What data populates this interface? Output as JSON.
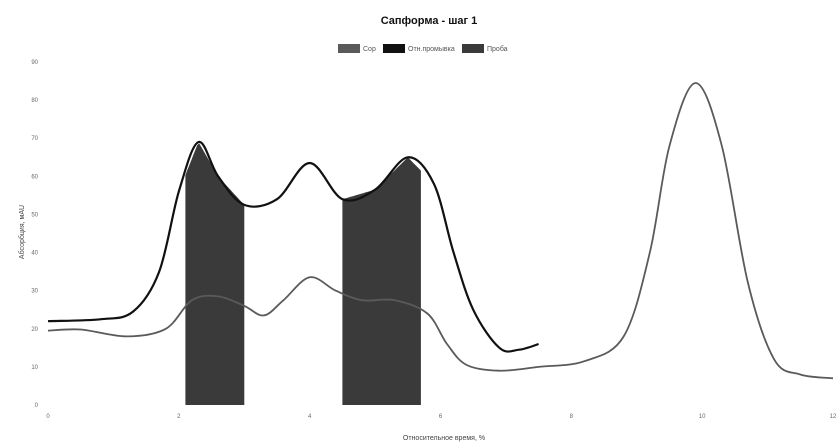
{
  "chart_data": {
    "type": "line",
    "title": "Сапформа - шаг 1",
    "xlabel": "Относительное время, %",
    "ylabel": "Абсорбция, мAU",
    "xlim": [
      0,
      12
    ],
    "ylim": [
      0,
      90
    ],
    "x_ticks": [
      "0",
      "2",
      "4",
      "6",
      "8",
      "10",
      "12"
    ],
    "y_ticks": [
      "0",
      "10",
      "20",
      "30",
      "40",
      "50",
      "60",
      "70",
      "80",
      "90"
    ],
    "legend_position": "top-center",
    "grid": false,
    "series": [
      {
        "name": "Сор",
        "color": "#5a5a5a",
        "x": [
          0,
          0.5,
          1.2,
          1.8,
          2.2,
          2.6,
          3.0,
          3.3,
          3.6,
          4.0,
          4.4,
          4.8,
          5.3,
          5.8,
          6.1,
          6.4,
          6.9,
          7.5,
          8.2,
          8.8,
          9.2,
          9.5,
          9.9,
          10.3,
          10.7,
          11.1,
          11.5,
          12.0
        ],
        "values": [
          19.5,
          19.8,
          18.0,
          20.0,
          27.5,
          28.5,
          26.0,
          23.5,
          27.5,
          33.5,
          30.0,
          27.5,
          27.5,
          24.0,
          16.0,
          10.5,
          9.0,
          10.0,
          11.5,
          18.0,
          40.0,
          68.0,
          84.5,
          68.0,
          32.0,
          12.0,
          8.0,
          7.0
        ]
      },
      {
        "name": "Отн.промывка",
        "color": "#111111",
        "x": [
          0,
          0.8,
          1.3,
          1.7,
          2.0,
          2.3,
          2.6,
          3.0,
          3.5,
          4.0,
          4.5,
          5.0,
          5.5,
          5.9,
          6.2,
          6.5,
          6.9,
          7.2,
          7.5
        ],
        "values": [
          22.0,
          22.5,
          24.5,
          35.0,
          56.0,
          69.0,
          60.0,
          52.5,
          54.0,
          63.5,
          54.0,
          56.5,
          65.0,
          58.0,
          40.0,
          25.0,
          15.0,
          14.5,
          16.0
        ]
      }
    ],
    "bands": {
      "name": "Проба",
      "color": "#3a3a3a",
      "ranges": [
        [
          2.1,
          3.0
        ],
        [
          4.5,
          5.7
        ]
      ]
    }
  }
}
